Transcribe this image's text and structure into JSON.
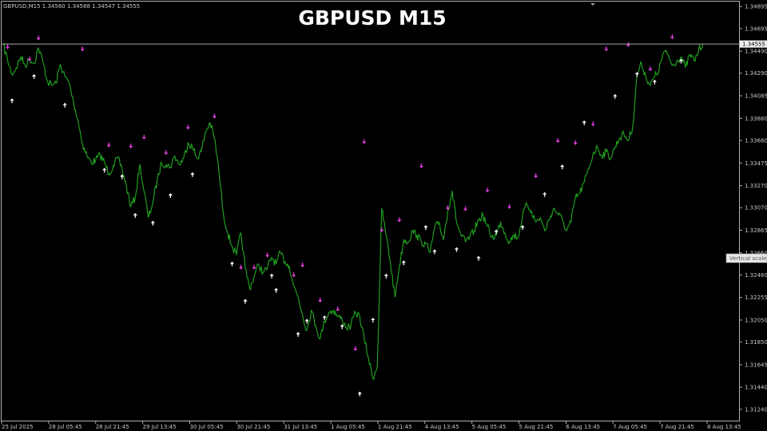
{
  "chart_title": "GBPUSD M15",
  "header_info": "GBPUSD,M15  1.34560 1.34588 1.34547 1.34555",
  "vertical_scale_label": "Vertical scale",
  "colors": {
    "background": "#000000",
    "line": "#1f9d1f",
    "arrow_up": "#ffffff",
    "arrow_down": "#e040e0",
    "frame": "#b0b0b0"
  },
  "chart_data": {
    "type": "line",
    "title": "GBPUSD M15",
    "xlabel": "",
    "ylabel": "",
    "ylim": [
      1.3113,
      1.3494
    ],
    "grid": false,
    "y_ticks": [
      "1.34895",
      "1.34695",
      "1.34490",
      "1.34290",
      "1.34085",
      "1.33880",
      "1.33680",
      "1.33475",
      "1.33270",
      "1.33070",
      "1.32865",
      "1.32660",
      "1.32460",
      "1.32255",
      "1.32050",
      "1.31850",
      "1.31645",
      "1.31440",
      "1.31240"
    ],
    "x_ticks": [
      "25 Jul 2025",
      "28 Jul 05:45",
      "28 Jul 21:45",
      "29 Jul 13:45",
      "30 Jul 05:45",
      "30 Jul 21:45",
      "31 Jul 13:45",
      "1 Aug 05:45",
      "1 Aug 21:45",
      "4 Aug 13:45",
      "5 Aug 05:45",
      "5 Aug 21:45",
      "6 Aug 13:45",
      "7 Aug 05:45",
      "7 Aug 21:45",
      "8 Aug 13:45"
    ],
    "current_price": "1.34555",
    "series": [
      {
        "values": [
          1.3455,
          1.3441,
          1.3428,
          1.3434,
          1.3444,
          1.3436,
          1.3442,
          1.3438,
          1.3452,
          1.344,
          1.3422,
          1.3418,
          1.342,
          1.3437,
          1.3426,
          1.342,
          1.3402,
          1.3386,
          1.3365,
          1.3354,
          1.3348,
          1.335,
          1.3355,
          1.3348,
          1.3338,
          1.3345,
          1.3352,
          1.3342,
          1.3326,
          1.3308,
          1.3316,
          1.3346,
          1.3322,
          1.3298,
          1.3312,
          1.3332,
          1.3348,
          1.3346,
          1.3344,
          1.3354,
          1.3346,
          1.3352,
          1.3366,
          1.3362,
          1.3352,
          1.3358,
          1.3376,
          1.3384,
          1.337,
          1.334,
          1.3302,
          1.3284,
          1.3272,
          1.3264,
          1.3284,
          1.3252,
          1.3234,
          1.3244,
          1.3256,
          1.3248,
          1.3252,
          1.3262,
          1.3256,
          1.3266,
          1.3258,
          1.3254,
          1.3236,
          1.3226,
          1.321,
          1.3196,
          1.3214,
          1.32,
          1.3188,
          1.3204,
          1.3212,
          1.3214,
          1.3208,
          1.3206,
          1.3198,
          1.32,
          1.3212,
          1.3208,
          1.3188,
          1.317,
          1.3152,
          1.3164,
          1.3306,
          1.3282,
          1.3256,
          1.3226,
          1.3254,
          1.3278,
          1.3276,
          1.3286,
          1.3282,
          1.3276,
          1.3274,
          1.3266,
          1.3288,
          1.3294,
          1.3278,
          1.3304,
          1.3322,
          1.3294,
          1.3282,
          1.3276,
          1.328,
          1.3286,
          1.3296,
          1.33,
          1.329,
          1.328,
          1.3282,
          1.3294,
          1.3284,
          1.3276,
          1.3282,
          1.328,
          1.33,
          1.331,
          1.3304,
          1.3294,
          1.3298,
          1.3286,
          1.3296,
          1.3306,
          1.3302,
          1.3296,
          1.3286,
          1.3294,
          1.3316,
          1.332,
          1.333,
          1.3342,
          1.3356,
          1.3362,
          1.3354,
          1.3358,
          1.3352,
          1.3362,
          1.337,
          1.3374,
          1.3368,
          1.338,
          1.3428,
          1.3438,
          1.3426,
          1.3418,
          1.3426,
          1.3432,
          1.3448,
          1.3446,
          1.3436,
          1.344,
          1.3444,
          1.3434,
          1.3446,
          1.344,
          1.345,
          1.3456
        ]
      }
    ],
    "markers": [
      {
        "type": "down",
        "i": 1,
        "y": 1.3453
      },
      {
        "type": "up",
        "i": 2,
        "y": 1.3404
      },
      {
        "type": "down",
        "i": 6,
        "y": 1.3442
      },
      {
        "type": "up",
        "i": 7,
        "y": 1.3426
      },
      {
        "type": "down",
        "i": 8,
        "y": 1.3461
      },
      {
        "type": "up",
        "i": 14,
        "y": 1.34
      },
      {
        "type": "down",
        "i": 18,
        "y": 1.3451
      },
      {
        "type": "up",
        "i": 23,
        "y": 1.3341
      },
      {
        "type": "down",
        "i": 24,
        "y": 1.3364
      },
      {
        "type": "up",
        "i": 27,
        "y": 1.3335
      },
      {
        "type": "down",
        "i": 29,
        "y": 1.3363
      },
      {
        "type": "up",
        "i": 30,
        "y": 1.33
      },
      {
        "type": "down",
        "i": 32,
        "y": 1.3371
      },
      {
        "type": "up",
        "i": 34,
        "y": 1.3293
      },
      {
        "type": "down",
        "i": 37,
        "y": 1.3357
      },
      {
        "type": "up",
        "i": 38,
        "y": 1.3318
      },
      {
        "type": "down",
        "i": 42,
        "y": 1.338
      },
      {
        "type": "up",
        "i": 43,
        "y": 1.3337
      },
      {
        "type": "down",
        "i": 48,
        "y": 1.339
      },
      {
        "type": "up",
        "i": 52,
        "y": 1.3256
      },
      {
        "type": "down",
        "i": 54,
        "y": 1.3253
      },
      {
        "type": "up",
        "i": 55,
        "y": 1.3222
      },
      {
        "type": "down",
        "i": 57,
        "y": 1.3253
      },
      {
        "type": "down",
        "i": 60,
        "y": 1.3264
      },
      {
        "type": "up",
        "i": 61,
        "y": 1.3245
      },
      {
        "type": "up",
        "i": 62,
        "y": 1.3232
      },
      {
        "type": "down",
        "i": 66,
        "y": 1.3246
      },
      {
        "type": "up",
        "i": 67,
        "y": 1.3192
      },
      {
        "type": "down",
        "i": 68,
        "y": 1.3255
      },
      {
        "type": "up",
        "i": 69,
        "y": 1.3204
      },
      {
        "type": "down",
        "i": 72,
        "y": 1.3223
      },
      {
        "type": "up",
        "i": 73,
        "y": 1.3207
      },
      {
        "type": "down",
        "i": 76,
        "y": 1.3215
      },
      {
        "type": "up",
        "i": 77,
        "y": 1.3199
      },
      {
        "type": "down",
        "i": 80,
        "y": 1.3179
      },
      {
        "type": "up",
        "i": 81,
        "y": 1.3138
      },
      {
        "type": "down",
        "i": 82,
        "y": 1.3367
      },
      {
        "type": "up",
        "i": 84,
        "y": 1.3205
      },
      {
        "type": "down",
        "i": 86,
        "y": 1.3287
      },
      {
        "type": "up",
        "i": 87,
        "y": 1.3245
      },
      {
        "type": "down",
        "i": 90,
        "y": 1.3296
      },
      {
        "type": "up",
        "i": 91,
        "y": 1.3257
      },
      {
        "type": "down",
        "i": 95,
        "y": 1.3345
      },
      {
        "type": "up",
        "i": 96,
        "y": 1.3289
      },
      {
        "type": "up",
        "i": 98,
        "y": 1.3267
      },
      {
        "type": "down",
        "i": 101,
        "y": 1.3307
      },
      {
        "type": "up",
        "i": 103,
        "y": 1.3269
      },
      {
        "type": "down",
        "i": 105,
        "y": 1.3306
      },
      {
        "type": "up",
        "i": 108,
        "y": 1.3261
      },
      {
        "type": "down",
        "i": 110,
        "y": 1.3323
      },
      {
        "type": "up",
        "i": 112,
        "y": 1.3285
      },
      {
        "type": "down",
        "i": 115,
        "y": 1.3308
      },
      {
        "type": "up",
        "i": 118,
        "y": 1.3289
      },
      {
        "type": "down",
        "i": 121,
        "y": 1.3336
      },
      {
        "type": "up",
        "i": 123,
        "y": 1.3319
      },
      {
        "type": "down",
        "i": 126,
        "y": 1.3368
      },
      {
        "type": "up",
        "i": 127,
        "y": 1.3344
      },
      {
        "type": "down",
        "i": 130,
        "y": 1.3366
      },
      {
        "type": "up",
        "i": 132,
        "y": 1.3384
      },
      {
        "type": "down",
        "i": 134,
        "y": 1.3383
      },
      {
        "type": "down",
        "i": 137,
        "y": 1.3451
      },
      {
        "type": "up",
        "i": 139,
        "y": 1.3408
      },
      {
        "type": "down",
        "i": 142,
        "y": 1.3455
      },
      {
        "type": "up",
        "i": 144,
        "y": 1.3428
      },
      {
        "type": "down",
        "i": 147,
        "y": 1.3433
      },
      {
        "type": "up",
        "i": 148,
        "y": 1.3421
      },
      {
        "type": "down",
        "i": 152,
        "y": 1.3462
      },
      {
        "type": "up",
        "i": 154,
        "y": 1.344
      }
    ]
  }
}
